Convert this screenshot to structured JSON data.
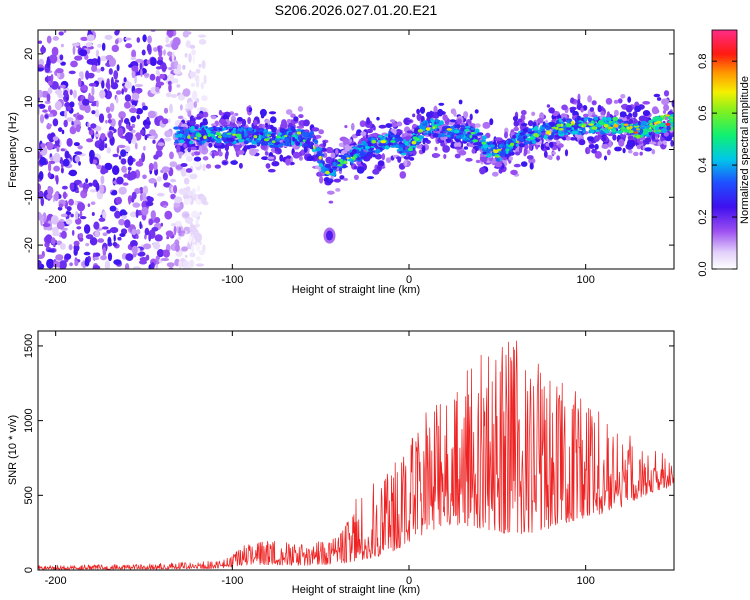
{
  "page": {
    "title": "S206.2026.027.01.20.E21"
  },
  "chart_data": [
    {
      "id": "spectrogram",
      "type": "heatmap",
      "xlabel": "Height of straight line (km)",
      "ylabel": "Frequency (Hz)",
      "xlim": [
        -210,
        150
      ],
      "ylim": [
        -25,
        25
      ],
      "xticks": [
        -200,
        -100,
        0,
        100
      ],
      "yticks": [
        -20,
        -10,
        0,
        10,
        20
      ],
      "grid": false,
      "colorbar": {
        "label": "Normalized spectral amplitude",
        "range": [
          0.0,
          0.92
        ],
        "ticks": [
          0.0,
          0.2,
          0.4,
          0.6,
          0.8
        ],
        "tick_labels": [
          "0.0",
          "0.2",
          "0.4",
          "0.6",
          "0.8"
        ],
        "colormap": "rainbow (white-lavender-purple-blue-cyan-green-yellow-orange-red-magenta)"
      },
      "ridge_center_hz": {
        "x": [
          -130,
          -110,
          -90,
          -75,
          -65,
          -55,
          -50,
          -45,
          -40,
          -30,
          -20,
          -10,
          0,
          5,
          10,
          20,
          30,
          40,
          45,
          50,
          55,
          60,
          70,
          80,
          90,
          100,
          110,
          120,
          130,
          140,
          150
        ],
        "y": [
          3,
          3,
          3,
          2,
          3,
          2,
          -2,
          -5,
          -3,
          -1,
          1,
          2,
          0,
          3,
          5,
          4,
          4,
          2,
          0,
          -1,
          0,
          2,
          3,
          4,
          5,
          5,
          5,
          5,
          4,
          5,
          6
        ]
      },
      "isolated_blob": {
        "x": -45,
        "y": -18
      },
      "noise_region_x": [
        -210,
        -115
      ]
    },
    {
      "id": "snr",
      "type": "line",
      "xlabel": "Height of straight line (km)",
      "ylabel": "SNR (10 * v/v)",
      "xlim": [
        -210,
        150
      ],
      "ylim": [
        0,
        1600
      ],
      "xticks": [
        -200,
        -100,
        0,
        100
      ],
      "yticks": [
        0,
        500,
        1000,
        1500
      ],
      "grid": false,
      "line_color": "#ee2222",
      "envelope": {
        "x": [
          -210,
          -150,
          -110,
          -100,
          -95,
          -80,
          -60,
          -40,
          -30,
          -20,
          -10,
          0,
          10,
          20,
          30,
          40,
          50,
          60,
          70,
          80,
          90,
          100,
          110,
          120,
          130,
          140,
          150
        ],
        "min": [
          5,
          5,
          10,
          20,
          30,
          35,
          30,
          40,
          60,
          80,
          120,
          180,
          250,
          300,
          300,
          280,
          250,
          240,
          250,
          280,
          320,
          350,
          380,
          420,
          480,
          530,
          560
        ],
        "max": [
          30,
          40,
          60,
          90,
          190,
          200,
          170,
          220,
          500,
          620,
          700,
          850,
          1200,
          1230,
          1500,
          1460,
          1530,
          1590,
          1450,
          1300,
          1250,
          1150,
          1050,
          950,
          870,
          800,
          780
        ]
      }
    }
  ]
}
